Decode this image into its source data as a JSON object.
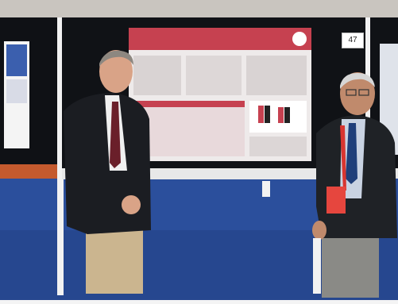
{
  "scene": {
    "kind": "photo",
    "board_number": "47",
    "colors": {
      "carpet": "#2b4f9c",
      "board": "#101216",
      "poster": "#eeeaea",
      "poster_red": "#c64150",
      "lanyard": "#d83530",
      "jacket": "#1b1d22",
      "trousers": "#cbb58f",
      "grey_trousers": "#8a8a86"
    }
  }
}
